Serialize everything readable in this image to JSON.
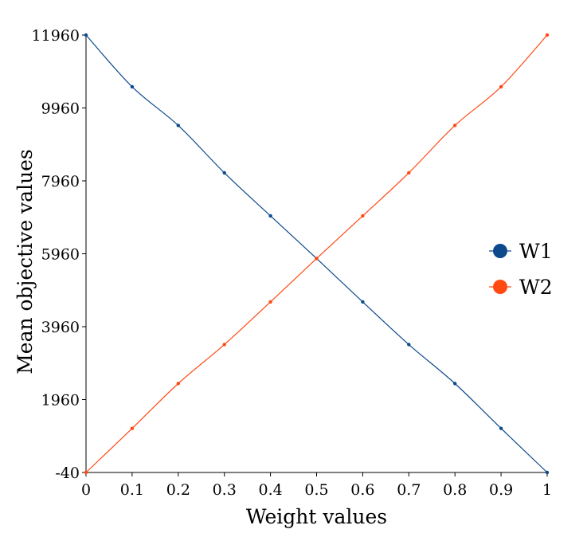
{
  "chart_data": {
    "type": "line",
    "title": "",
    "xlabel": "Weight values",
    "ylabel": "Mean objective values",
    "x": [
      0,
      0.1,
      0.2,
      0.3,
      0.4,
      0.5,
      0.6,
      0.7,
      0.8,
      0.9,
      1
    ],
    "x_tick_labels": [
      "0",
      "0.1",
      "0.2",
      "0.3",
      "0.4",
      "0.5",
      "0.6",
      "0.7",
      "0.8",
      "0.9",
      "1"
    ],
    "y_ticks": [
      -40,
      1960,
      3960,
      5960,
      7960,
      9960,
      11960
    ],
    "y_tick_labels": [
      "-40",
      "1960",
      "3960",
      "5960",
      "7960",
      "9960",
      "11960"
    ],
    "xlim": [
      0,
      1
    ],
    "ylim": [
      -40,
      11960
    ],
    "grid": false,
    "legend_position": "right",
    "series": [
      {
        "name": "W1",
        "color": "#0d4a8c",
        "values": [
          11960,
          10540,
          9480,
          8180,
          7000,
          5830,
          4640,
          3470,
          2400,
          1170,
          -40
        ]
      },
      {
        "name": "W2",
        "color": "#ff4a14",
        "values": [
          -40,
          1170,
          2400,
          3470,
          4640,
          5830,
          7000,
          8180,
          9480,
          10540,
          11960
        ]
      }
    ]
  }
}
